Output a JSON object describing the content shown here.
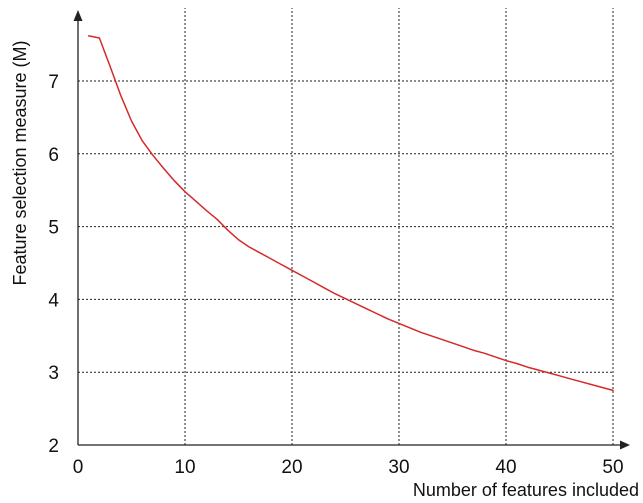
{
  "chart_data": {
    "type": "line",
    "xlabel": "Number of features included",
    "ylabel": "Feature selection measure (M)",
    "xlim": [
      0,
      50
    ],
    "ylim": [
      2,
      7.5
    ],
    "x_ticks": [
      "0",
      "10",
      "20",
      "30",
      "40",
      "50"
    ],
    "y_ticks": [
      "2",
      "3",
      "4",
      "5",
      "6",
      "7"
    ],
    "grid": true,
    "series": [
      {
        "color": "#d42a2a",
        "x": [
          1,
          2,
          3,
          4,
          5,
          6,
          7,
          8,
          9,
          10,
          11,
          12,
          13,
          14,
          15,
          16,
          17,
          18,
          19,
          20,
          21,
          22,
          23,
          24,
          25,
          26,
          27,
          28,
          29,
          30,
          31,
          32,
          33,
          34,
          35,
          36,
          37,
          38,
          39,
          40,
          41,
          42,
          43,
          44,
          45,
          46,
          47,
          48,
          49,
          50
        ],
        "y": [
          7.62,
          7.59,
          7.2,
          6.8,
          6.45,
          6.18,
          5.98,
          5.8,
          5.63,
          5.48,
          5.35,
          5.22,
          5.1,
          4.95,
          4.82,
          4.72,
          4.64,
          4.56,
          4.48,
          4.4,
          4.32,
          4.24,
          4.16,
          4.08,
          4.01,
          3.94,
          3.87,
          3.8,
          3.73,
          3.67,
          3.61,
          3.55,
          3.5,
          3.45,
          3.4,
          3.35,
          3.3,
          3.26,
          3.21,
          3.16,
          3.12,
          3.07,
          3.03,
          2.99,
          2.95,
          2.91,
          2.87,
          2.83,
          2.79,
          2.75
        ]
      }
    ]
  }
}
